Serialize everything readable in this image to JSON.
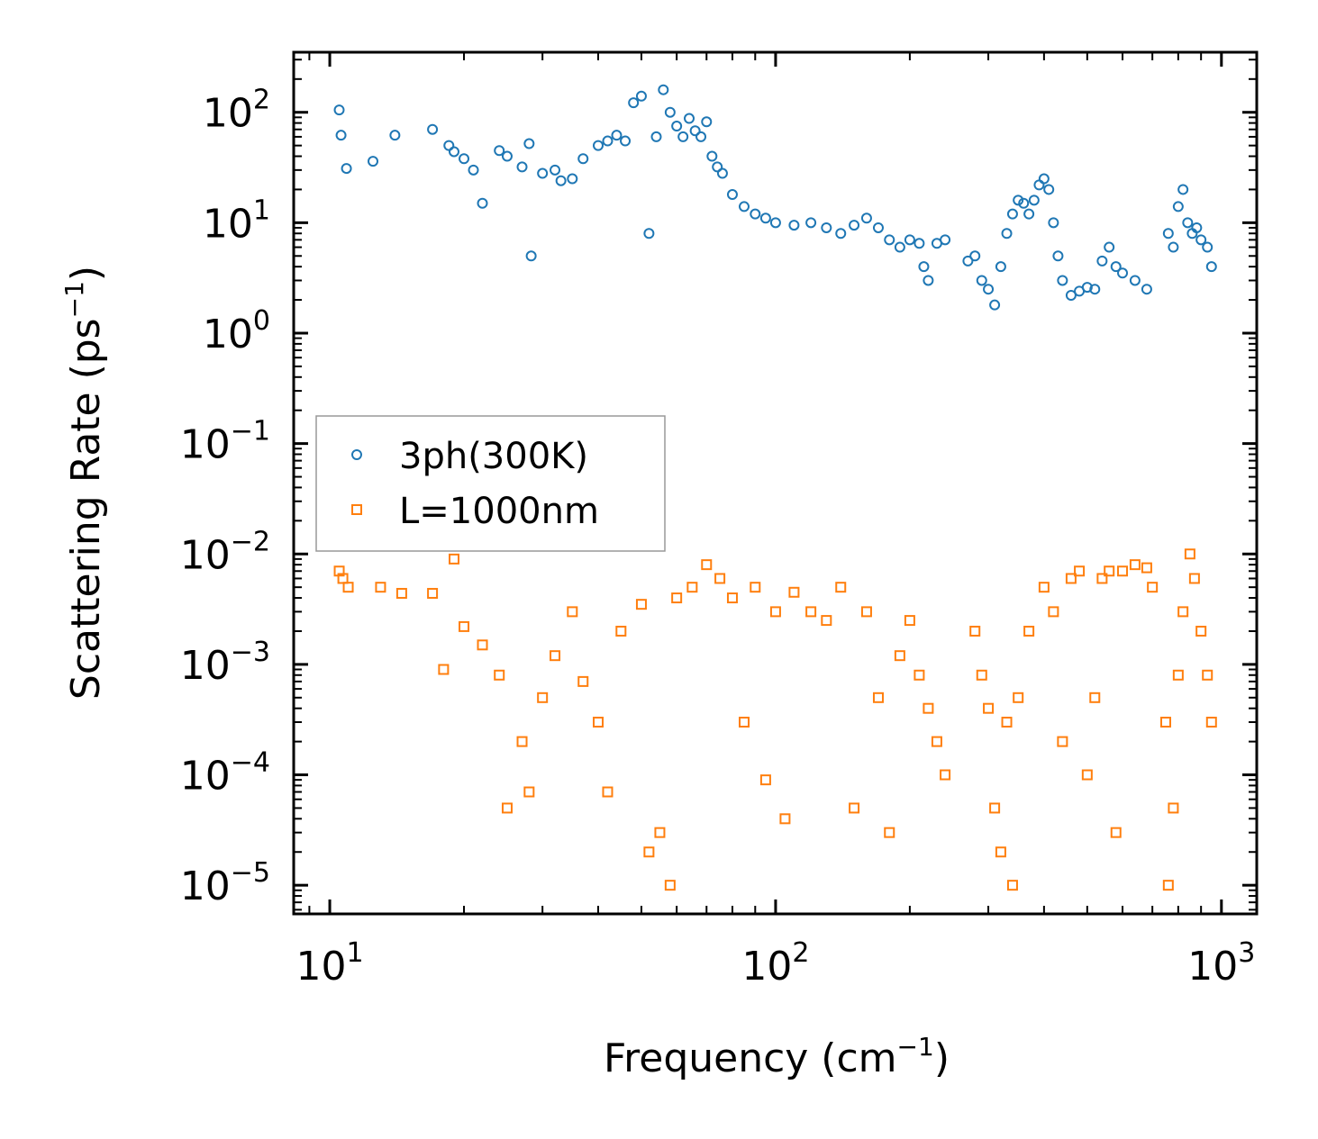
{
  "chart_data": {
    "type": "scatter",
    "title": "",
    "xlabel": "Frequency (cm",
    "xlabel_sup": "−1",
    "xlabel_end": ")",
    "ylabel": "Scattering Rate (ps",
    "ylabel_sup": "−1",
    "ylabel_end": ")",
    "xscale": "log",
    "yscale": "log",
    "xlim": [
      8.3,
      1200
    ],
    "ylim": [
      5.5e-06,
      350
    ],
    "x_ticks": [
      {
        "value": 10,
        "base": "10",
        "exp": "1"
      },
      {
        "value": 100,
        "base": "10",
        "exp": "2"
      },
      {
        "value": 1000,
        "base": "10",
        "exp": "3"
      }
    ],
    "y_ticks": [
      {
        "value": 1e-05,
        "base": "10",
        "exp": "−5"
      },
      {
        "value": 0.0001,
        "base": "10",
        "exp": "−4"
      },
      {
        "value": 0.001,
        "base": "10",
        "exp": "−3"
      },
      {
        "value": 0.01,
        "base": "10",
        "exp": "−2"
      },
      {
        "value": 0.1,
        "base": "10",
        "exp": "−1"
      },
      {
        "value": 1,
        "base": "10",
        "exp": "0"
      },
      {
        "value": 10,
        "base": "10",
        "exp": "1"
      },
      {
        "value": 100,
        "base": "10",
        "exp": "2"
      }
    ],
    "legend_position": "center-left",
    "series": [
      {
        "name": "3ph(300K)",
        "marker": "circle",
        "color": "#1f77b4",
        "points": [
          [
            10.5,
            105
          ],
          [
            10.6,
            62
          ],
          [
            10.9,
            31
          ],
          [
            12.5,
            36
          ],
          [
            14,
            62
          ],
          [
            17,
            70
          ],
          [
            18.5,
            50
          ],
          [
            19,
            44
          ],
          [
            20,
            38
          ],
          [
            21,
            30
          ],
          [
            22,
            15
          ],
          [
            24,
            45
          ],
          [
            25,
            40
          ],
          [
            27,
            32
          ],
          [
            28,
            52
          ],
          [
            28.3,
            5
          ],
          [
            30,
            28
          ],
          [
            32,
            30
          ],
          [
            33,
            24
          ],
          [
            35,
            25
          ],
          [
            37,
            38
          ],
          [
            40,
            50
          ],
          [
            42,
            55
          ],
          [
            44,
            62
          ],
          [
            46,
            55
          ],
          [
            48,
            122
          ],
          [
            50,
            140
          ],
          [
            52,
            8
          ],
          [
            54,
            60
          ],
          [
            56,
            160
          ],
          [
            58,
            100
          ],
          [
            60,
            75
          ],
          [
            62,
            60
          ],
          [
            64,
            88
          ],
          [
            66,
            68
          ],
          [
            68,
            60
          ],
          [
            70,
            82
          ],
          [
            72,
            40
          ],
          [
            74,
            32
          ],
          [
            76,
            28
          ],
          [
            80,
            18
          ],
          [
            85,
            14
          ],
          [
            90,
            12
          ],
          [
            95,
            11
          ],
          [
            100,
            10
          ],
          [
            110,
            9.5
          ],
          [
            120,
            10
          ],
          [
            130,
            9
          ],
          [
            140,
            8
          ],
          [
            150,
            9.5
          ],
          [
            160,
            11
          ],
          [
            170,
            9
          ],
          [
            180,
            7
          ],
          [
            190,
            6
          ],
          [
            200,
            7
          ],
          [
            210,
            6.5
          ],
          [
            215,
            4
          ],
          [
            220,
            3
          ],
          [
            230,
            6.5
          ],
          [
            240,
            7
          ],
          [
            270,
            4.5
          ],
          [
            280,
            5
          ],
          [
            290,
            3
          ],
          [
            300,
            2.5
          ],
          [
            310,
            1.8
          ],
          [
            320,
            4
          ],
          [
            330,
            8
          ],
          [
            340,
            12
          ],
          [
            350,
            16
          ],
          [
            360,
            15
          ],
          [
            370,
            12
          ],
          [
            380,
            16
          ],
          [
            390,
            22
          ],
          [
            400,
            25
          ],
          [
            410,
            20
          ],
          [
            420,
            10
          ],
          [
            430,
            5
          ],
          [
            440,
            3
          ],
          [
            460,
            2.2
          ],
          [
            480,
            2.4
          ],
          [
            500,
            2.6
          ],
          [
            520,
            2.5
          ],
          [
            540,
            4.5
          ],
          [
            560,
            6
          ],
          [
            580,
            4
          ],
          [
            600,
            3.5
          ],
          [
            640,
            3
          ],
          [
            680,
            2.5
          ],
          [
            760,
            8
          ],
          [
            780,
            6
          ],
          [
            800,
            14
          ],
          [
            820,
            20
          ],
          [
            840,
            10
          ],
          [
            860,
            8
          ],
          [
            880,
            9
          ],
          [
            900,
            7
          ],
          [
            930,
            6
          ],
          [
            950,
            4
          ]
        ]
      },
      {
        "name": "L=1000nm",
        "marker": "square",
        "color": "#ff7f0e",
        "points": [
          [
            10.5,
            0.007
          ],
          [
            10.7,
            0.006
          ],
          [
            11,
            0.005
          ],
          [
            13,
            0.005
          ],
          [
            14.5,
            0.0044
          ],
          [
            17,
            0.0044
          ],
          [
            18,
            0.0009
          ],
          [
            19,
            0.009
          ],
          [
            20,
            0.0022
          ],
          [
            22,
            0.0015
          ],
          [
            24,
            0.0008
          ],
          [
            25,
            5e-05
          ],
          [
            27,
            0.0002
          ],
          [
            28,
            7e-05
          ],
          [
            30,
            0.0005
          ],
          [
            32,
            0.0012
          ],
          [
            35,
            0.003
          ],
          [
            37,
            0.0007
          ],
          [
            40,
            0.0003
          ],
          [
            42,
            7e-05
          ],
          [
            45,
            0.002
          ],
          [
            50,
            0.0035
          ],
          [
            52,
            2e-05
          ],
          [
            55,
            3e-05
          ],
          [
            58,
            1e-05
          ],
          [
            60,
            0.004
          ],
          [
            65,
            0.005
          ],
          [
            70,
            0.008
          ],
          [
            75,
            0.006
          ],
          [
            80,
            0.004
          ],
          [
            85,
            0.0003
          ],
          [
            90,
            0.005
          ],
          [
            95,
            9e-05
          ],
          [
            100,
            0.003
          ],
          [
            105,
            4e-05
          ],
          [
            110,
            0.0045
          ],
          [
            120,
            0.003
          ],
          [
            130,
            0.0025
          ],
          [
            140,
            0.005
          ],
          [
            150,
            5e-05
          ],
          [
            160,
            0.003
          ],
          [
            170,
            0.0005
          ],
          [
            180,
            3e-05
          ],
          [
            190,
            0.0012
          ],
          [
            200,
            0.0025
          ],
          [
            210,
            0.0008
          ],
          [
            220,
            0.0004
          ],
          [
            230,
            0.0002
          ],
          [
            240,
            0.0001
          ],
          [
            280,
            0.002
          ],
          [
            290,
            0.0008
          ],
          [
            300,
            0.0004
          ],
          [
            310,
            5e-05
          ],
          [
            320,
            2e-05
          ],
          [
            330,
            0.0003
          ],
          [
            340,
            1e-05
          ],
          [
            350,
            0.0005
          ],
          [
            370,
            0.002
          ],
          [
            400,
            0.005
          ],
          [
            420,
            0.003
          ],
          [
            440,
            0.0002
          ],
          [
            460,
            0.006
          ],
          [
            480,
            0.007
          ],
          [
            500,
            0.0001
          ],
          [
            520,
            0.0005
          ],
          [
            540,
            0.006
          ],
          [
            560,
            0.007
          ],
          [
            580,
            3e-05
          ],
          [
            600,
            0.007
          ],
          [
            640,
            0.008
          ],
          [
            680,
            0.0075
          ],
          [
            700,
            0.005
          ],
          [
            750,
            0.0003
          ],
          [
            760,
            1e-05
          ],
          [
            780,
            5e-05
          ],
          [
            800,
            0.0008
          ],
          [
            820,
            0.003
          ],
          [
            850,
            0.01
          ],
          [
            870,
            0.006
          ],
          [
            900,
            0.002
          ],
          [
            930,
            0.0008
          ],
          [
            950,
            0.0003
          ]
        ]
      }
    ]
  }
}
